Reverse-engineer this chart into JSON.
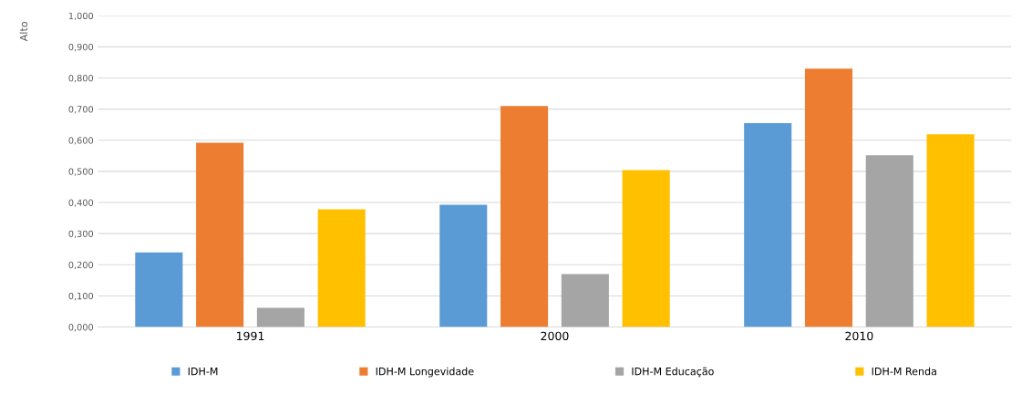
{
  "chart_data": {
    "type": "bar",
    "ylabel": "Alto",
    "categories": [
      "1991",
      "2000",
      "2010"
    ],
    "series": [
      {
        "name": "IDH-M",
        "color": "#5b9bd5",
        "values": [
          0.24,
          0.393,
          0.655
        ]
      },
      {
        "name": "IDH-M Longevidade",
        "color": "#ed7d31",
        "values": [
          0.592,
          0.71,
          0.83
        ]
      },
      {
        "name": "IDH-M Educação",
        "color": "#a5a5a5",
        "values": [
          0.062,
          0.17,
          0.552
        ]
      },
      {
        "name": "IDH-M Renda",
        "color": "#ffc000",
        "values": [
          0.378,
          0.504,
          0.619
        ]
      }
    ],
    "ylim": [
      0,
      1
    ],
    "yticks": [
      {
        "value": 0,
        "label": "0,000"
      },
      {
        "value": 0.1,
        "label": "0,100"
      },
      {
        "value": 0.2,
        "label": "0,200"
      },
      {
        "value": 0.3,
        "label": "0,300"
      },
      {
        "value": 0.4,
        "label": "0,400"
      },
      {
        "value": 0.5,
        "label": "0,500"
      },
      {
        "value": 0.6,
        "label": "0,600"
      },
      {
        "value": 0.7,
        "label": "0,700"
      },
      {
        "value": 0.8,
        "label": "0,800"
      },
      {
        "value": 0.9,
        "label": "0,900"
      },
      {
        "value": 1,
        "label": "1,000"
      }
    ],
    "grid": "y",
    "legend": "bottom"
  }
}
